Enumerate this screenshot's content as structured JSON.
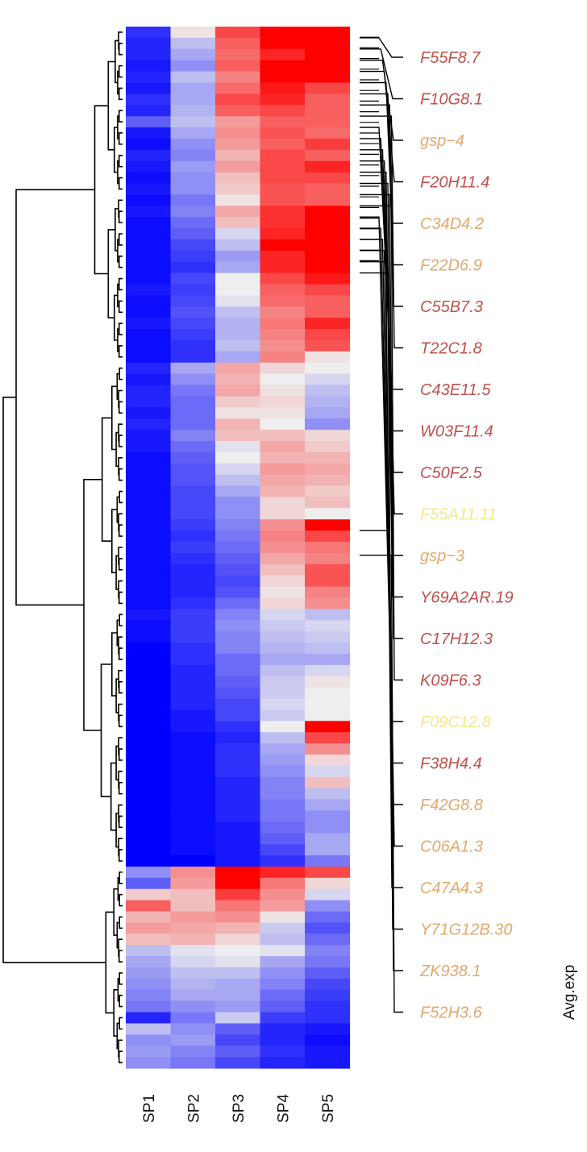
{
  "chart_data": {
    "type": "heatmap",
    "columns": [
      "SP1",
      "SP2",
      "SP3",
      "SP4",
      "SP5"
    ],
    "legend_title": "Avg.exp",
    "value_range": [
      -1,
      1
    ],
    "colors": {
      "low": "#0000ff",
      "mid": "#eeeeee",
      "high": "#ff0000"
    },
    "labeled_genes": [
      {
        "name": "F55F8.7",
        "color": "#c0504d"
      },
      {
        "name": "F10G8.1",
        "color": "#c0504d"
      },
      {
        "name": "gsp−4",
        "color": "#e3a86b"
      },
      {
        "name": "F20H11.4",
        "color": "#c0504d"
      },
      {
        "name": "C34D4.2",
        "color": "#e3a86b"
      },
      {
        "name": "F22D6.9",
        "color": "#e3a86b"
      },
      {
        "name": "C55B7.3",
        "color": "#c0504d"
      },
      {
        "name": "T22C1.8",
        "color": "#c0504d"
      },
      {
        "name": "C43E11.5",
        "color": "#c0504d"
      },
      {
        "name": "W03F11.4",
        "color": "#c0504d"
      },
      {
        "name": "C50F2.5",
        "color": "#c0504d"
      },
      {
        "name": "F55A11.11",
        "color": "#f3e88c"
      },
      {
        "name": "gsp−3",
        "color": "#e3a86b"
      },
      {
        "name": "Y69A2AR.19",
        "color": "#c0504d"
      },
      {
        "name": "C17H12.3",
        "color": "#c0504d"
      },
      {
        "name": "K09F6.3",
        "color": "#c0504d"
      },
      {
        "name": "F09C12.8",
        "color": "#f3e88c"
      },
      {
        "name": "F38H4.4",
        "color": "#c0504d"
      },
      {
        "name": "F42G8.8",
        "color": "#e3a86b"
      },
      {
        "name": "C06A1.3",
        "color": "#e3a86b"
      },
      {
        "name": "C47A4.3",
        "color": "#e3a86b"
      },
      {
        "name": "Y71G12B.30",
        "color": "#e3a86b"
      },
      {
        "name": "ZK938.1",
        "color": "#e3a86b"
      },
      {
        "name": "F52H3.6",
        "color": "#e3a86b"
      }
    ],
    "rows": [
      [
        -0.8,
        0.05,
        0.7,
        1.0,
        1.0
      ],
      [
        -0.85,
        -0.2,
        0.6,
        1.0,
        1.0
      ],
      [
        -0.85,
        -0.3,
        0.55,
        0.85,
        1.0
      ],
      [
        -0.9,
        -0.4,
        0.6,
        1.0,
        1.0
      ],
      [
        -0.85,
        -0.2,
        0.45,
        1.0,
        1.0
      ],
      [
        -0.9,
        -0.3,
        0.55,
        0.9,
        0.7
      ],
      [
        -0.8,
        -0.3,
        0.7,
        0.85,
        0.6
      ],
      [
        -0.85,
        -0.25,
        0.6,
        0.7,
        0.6
      ],
      [
        -0.6,
        -0.2,
        0.35,
        0.6,
        0.6
      ],
      [
        -0.9,
        -0.3,
        0.4,
        0.65,
        0.55
      ],
      [
        -0.95,
        -0.4,
        0.35,
        0.6,
        0.75
      ],
      [
        -0.85,
        -0.45,
        0.25,
        0.7,
        0.6
      ],
      [
        -0.9,
        -0.35,
        0.35,
        0.7,
        0.85
      ],
      [
        -0.95,
        -0.4,
        0.2,
        0.7,
        0.7
      ],
      [
        -0.9,
        -0.4,
        0.15,
        0.65,
        0.6
      ],
      [
        -0.95,
        -0.5,
        0.05,
        0.65,
        0.6
      ],
      [
        -0.9,
        -0.45,
        0.3,
        0.8,
        1.0
      ],
      [
        -0.95,
        -0.55,
        0.2,
        0.8,
        1.0
      ],
      [
        -0.95,
        -0.6,
        -0.1,
        0.85,
        1.0
      ],
      [
        -0.95,
        -0.7,
        -0.2,
        1.0,
        1.0
      ],
      [
        -0.95,
        -0.75,
        -0.35,
        0.85,
        1.0
      ],
      [
        -0.95,
        -0.8,
        -0.3,
        0.85,
        1.0
      ],
      [
        -0.95,
        -0.7,
        0.0,
        0.7,
        0.9
      ],
      [
        -0.9,
        -0.75,
        0.0,
        0.6,
        0.7
      ],
      [
        -0.95,
        -0.7,
        -0.05,
        0.55,
        0.6
      ],
      [
        -0.95,
        -0.65,
        -0.2,
        0.45,
        0.6
      ],
      [
        -0.9,
        -0.7,
        -0.25,
        0.5,
        0.85
      ],
      [
        -0.95,
        -0.75,
        -0.25,
        0.45,
        0.7
      ],
      [
        -0.95,
        -0.8,
        -0.2,
        0.4,
        0.65
      ],
      [
        -0.95,
        -0.8,
        -0.3,
        0.45,
        0.05
      ],
      [
        -0.85,
        -0.3,
        0.3,
        0.1,
        0.0
      ],
      [
        -0.9,
        -0.4,
        0.25,
        0.0,
        -0.1
      ],
      [
        -0.85,
        -0.5,
        0.3,
        0.05,
        -0.2
      ],
      [
        -0.85,
        -0.55,
        0.15,
        0.1,
        -0.25
      ],
      [
        -0.9,
        -0.55,
        0.05,
        0.05,
        -0.3
      ],
      [
        -0.85,
        -0.55,
        0.25,
        0.0,
        -0.4
      ],
      [
        -0.9,
        -0.45,
        0.2,
        0.2,
        0.1
      ],
      [
        -0.9,
        -0.55,
        -0.05,
        0.3,
        0.15
      ],
      [
        -0.95,
        -0.6,
        0.0,
        0.25,
        0.25
      ],
      [
        -0.95,
        -0.65,
        -0.1,
        0.35,
        0.3
      ],
      [
        -0.95,
        -0.65,
        -0.2,
        0.3,
        0.25
      ],
      [
        -0.95,
        -0.7,
        -0.3,
        0.25,
        0.15
      ],
      [
        -0.95,
        -0.7,
        -0.4,
        0.1,
        0.2
      ],
      [
        -0.95,
        -0.7,
        -0.4,
        0.1,
        0.0
      ],
      [
        -0.95,
        -0.75,
        -0.45,
        0.4,
        1.0
      ],
      [
        -0.95,
        -0.8,
        -0.5,
        0.45,
        0.7
      ],
      [
        -0.95,
        -0.75,
        -0.55,
        0.4,
        0.5
      ],
      [
        -0.95,
        -0.8,
        -0.6,
        0.3,
        0.45
      ],
      [
        -0.95,
        -0.85,
        -0.65,
        0.2,
        0.65
      ],
      [
        -0.95,
        -0.85,
        -0.7,
        0.1,
        0.65
      ],
      [
        -0.95,
        -0.85,
        -0.65,
        0.05,
        0.45
      ],
      [
        -0.95,
        -0.8,
        -0.55,
        0.1,
        0.4
      ],
      [
        -0.9,
        -0.75,
        -0.45,
        -0.1,
        -0.2
      ],
      [
        -0.95,
        -0.75,
        -0.4,
        -0.15,
        -0.1
      ],
      [
        -0.95,
        -0.75,
        -0.45,
        -0.2,
        -0.15
      ],
      [
        -1.0,
        -0.8,
        -0.45,
        -0.25,
        -0.2
      ],
      [
        -1.0,
        -0.8,
        -0.55,
        -0.3,
        -0.3
      ],
      [
        -1.0,
        -0.85,
        -0.55,
        -0.2,
        -0.1
      ],
      [
        -1.0,
        -0.85,
        -0.6,
        -0.15,
        0.05
      ],
      [
        -1.0,
        -0.85,
        -0.65,
        -0.15,
        0.0
      ],
      [
        -1.0,
        -0.85,
        -0.7,
        -0.1,
        0.0
      ],
      [
        -1.0,
        -0.9,
        -0.7,
        -0.15,
        0.0
      ],
      [
        -1.0,
        -0.9,
        -0.8,
        0.0,
        1.0
      ],
      [
        -1.0,
        -0.95,
        -0.85,
        -0.2,
        0.7
      ],
      [
        -1.0,
        -0.95,
        -0.8,
        -0.3,
        0.4
      ],
      [
        -1.0,
        -0.95,
        -0.8,
        -0.35,
        0.1
      ],
      [
        -1.0,
        -0.95,
        -0.8,
        -0.4,
        -0.1
      ],
      [
        -1.0,
        -0.95,
        -0.85,
        -0.45,
        0.2
      ],
      [
        -1.0,
        -0.95,
        -0.85,
        -0.45,
        -0.2
      ],
      [
        -1.0,
        -0.95,
        -0.85,
        -0.5,
        -0.3
      ],
      [
        -1.0,
        -0.95,
        -0.85,
        -0.5,
        -0.4
      ],
      [
        -1.0,
        -0.95,
        -0.9,
        -0.55,
        -0.4
      ],
      [
        -1.0,
        -0.95,
        -0.9,
        -0.6,
        -0.3
      ],
      [
        -1.0,
        -0.95,
        -0.9,
        -0.7,
        -0.3
      ],
      [
        -1.0,
        -1.0,
        -0.9,
        -0.8,
        -0.5
      ],
      [
        -0.4,
        0.4,
        1.0,
        0.85,
        0.7
      ],
      [
        -0.6,
        0.35,
        1.0,
        0.5,
        0.1
      ],
      [
        0.15,
        0.2,
        0.75,
        0.4,
        -0.1
      ],
      [
        0.6,
        0.2,
        0.5,
        0.35,
        -0.4
      ],
      [
        0.25,
        0.35,
        0.4,
        0.05,
        -0.55
      ],
      [
        0.35,
        0.3,
        0.25,
        -0.15,
        -0.65
      ],
      [
        0.2,
        0.25,
        0.1,
        -0.2,
        -0.55
      ],
      [
        -0.2,
        -0.05,
        0.0,
        -0.05,
        -0.45
      ],
      [
        -0.3,
        -0.1,
        -0.05,
        -0.3,
        -0.5
      ],
      [
        -0.35,
        -0.2,
        -0.2,
        -0.4,
        -0.6
      ],
      [
        -0.4,
        -0.25,
        -0.3,
        -0.45,
        -0.7
      ],
      [
        -0.45,
        -0.3,
        -0.3,
        -0.55,
        -0.75
      ],
      [
        -0.5,
        -0.4,
        -0.35,
        -0.6,
        -0.8
      ],
      [
        -0.85,
        -0.5,
        -0.15,
        -0.75,
        -0.8
      ],
      [
        -0.2,
        -0.4,
        -0.6,
        -0.85,
        -0.9
      ],
      [
        -0.4,
        -0.35,
        -0.7,
        -0.85,
        -0.95
      ],
      [
        -0.35,
        -0.45,
        -0.6,
        -0.8,
        -0.9
      ],
      [
        -0.4,
        -0.5,
        -0.7,
        -0.85,
        -0.9
      ]
    ]
  }
}
